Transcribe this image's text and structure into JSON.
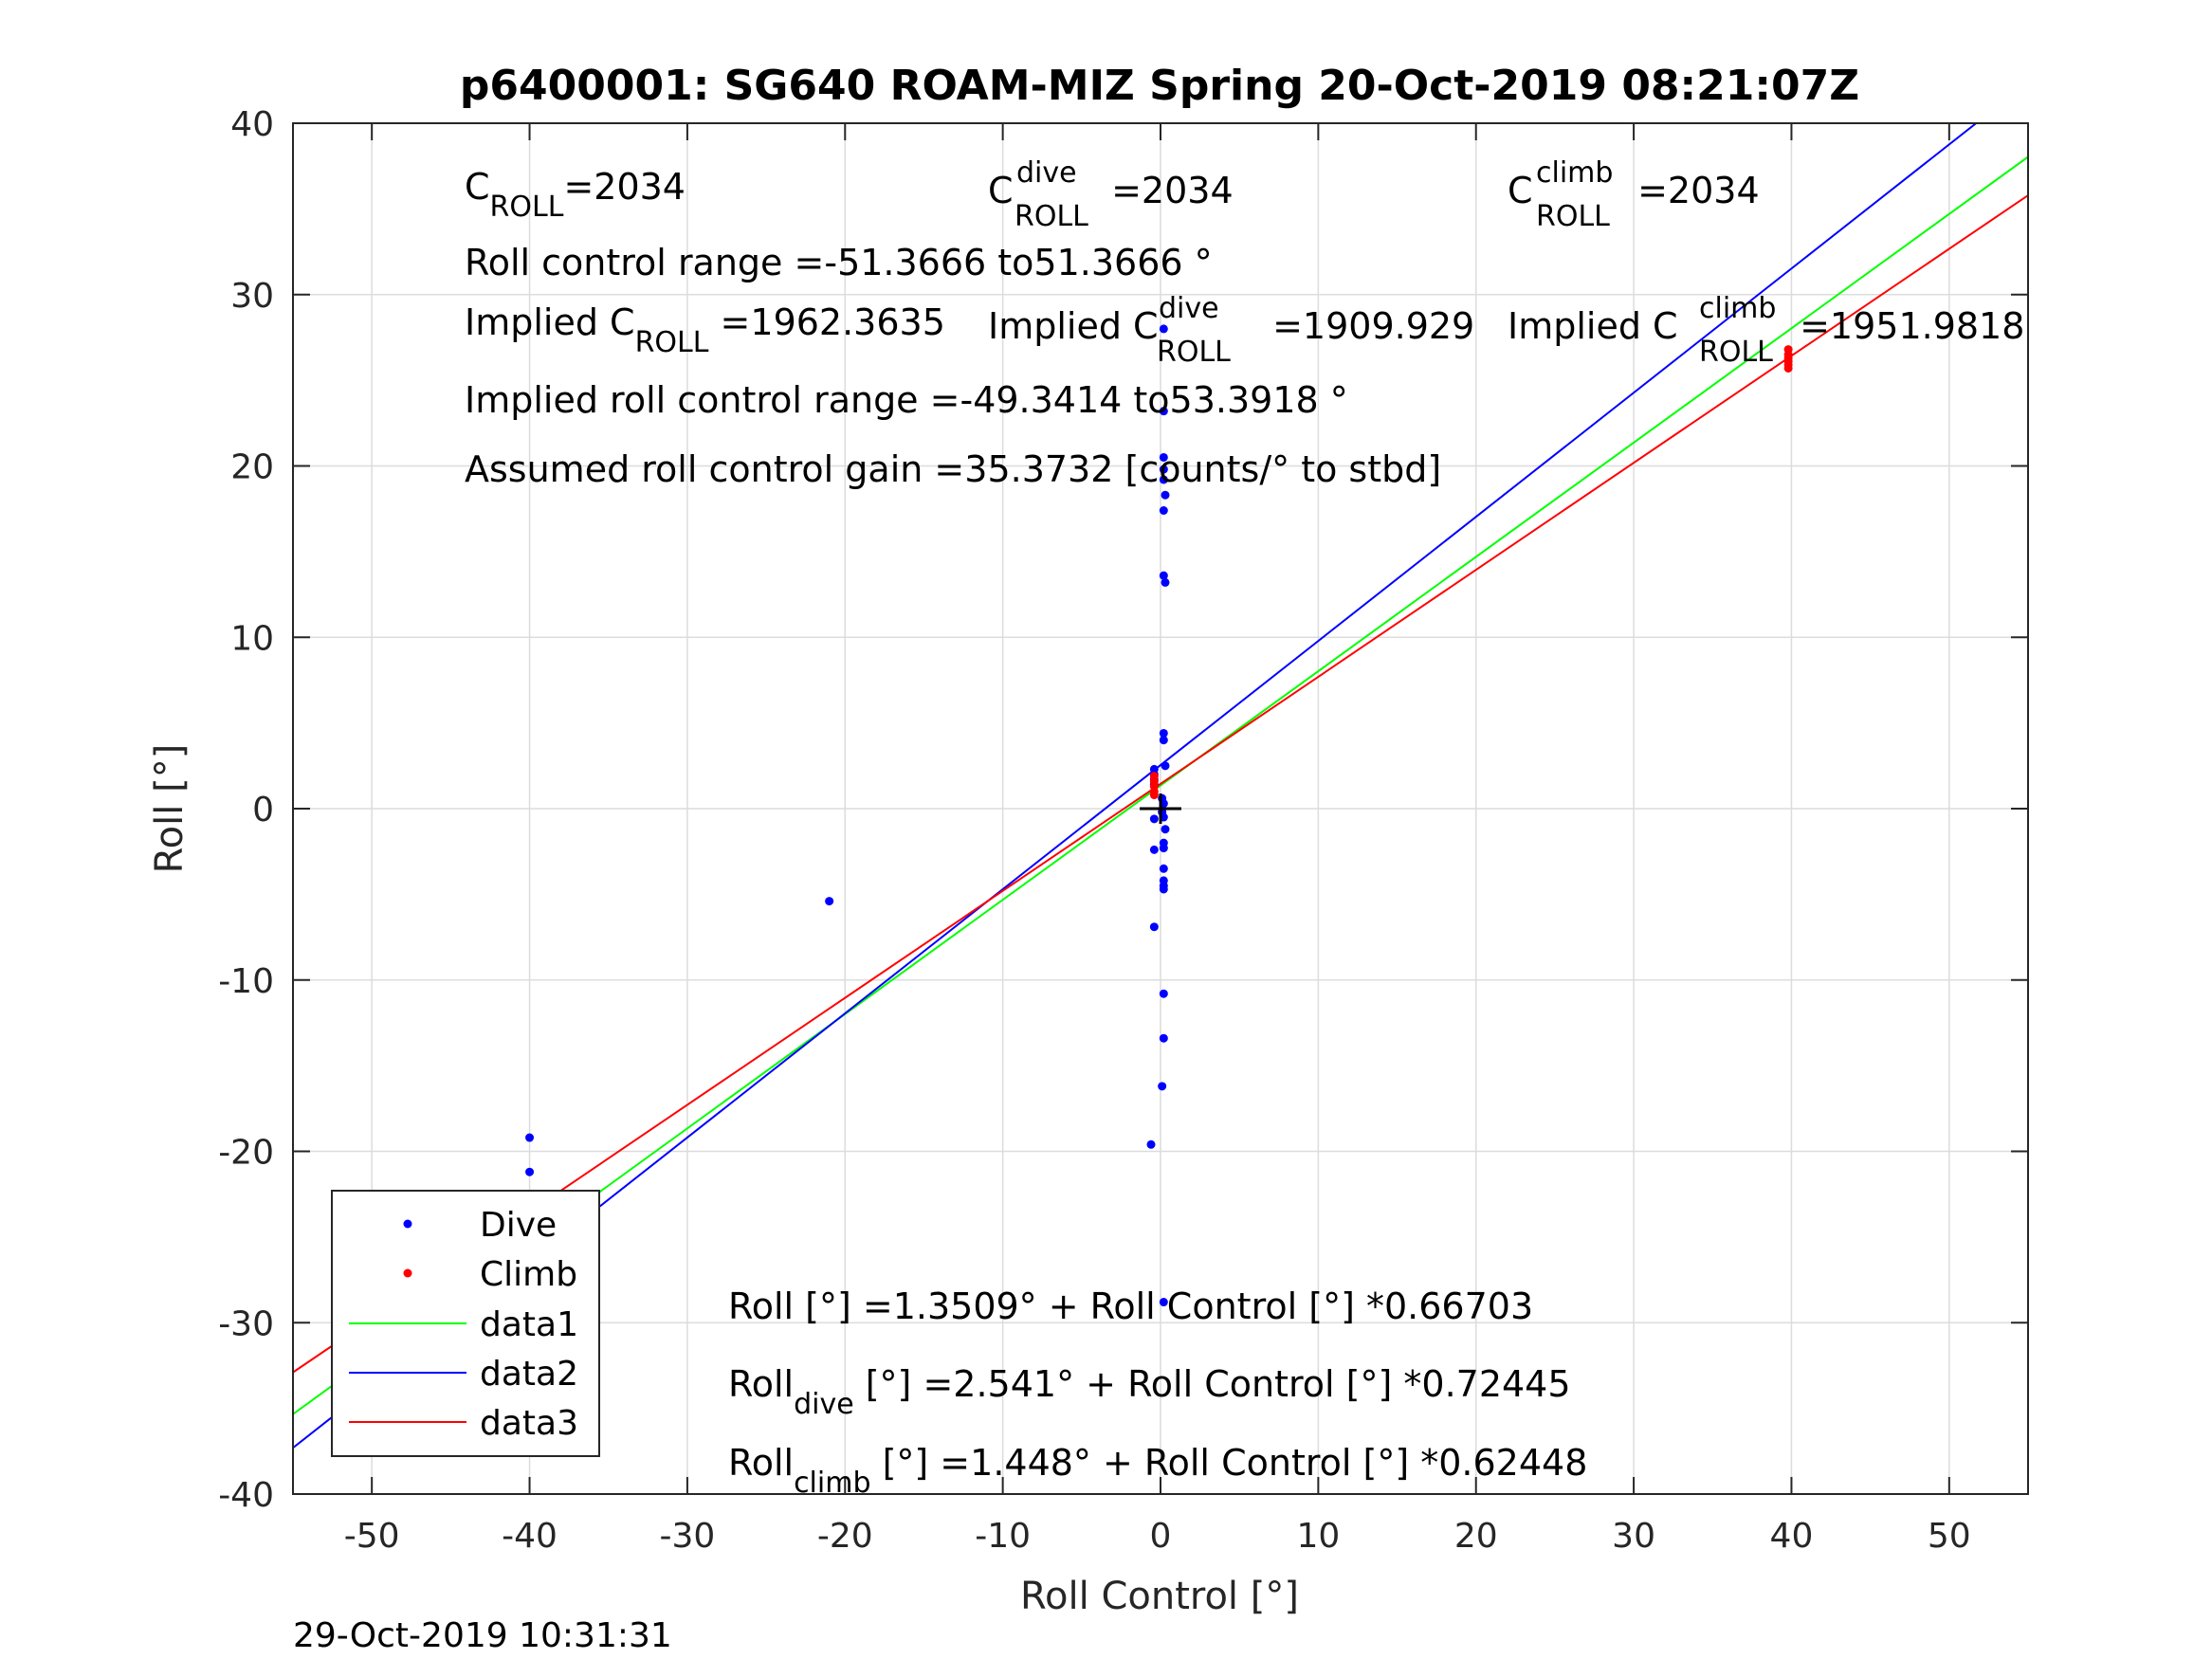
{
  "chart_data": {
    "type": "scatter",
    "title": "p6400001: SG640 ROAM-MIZ Spring 20-Oct-2019 08:21:07Z",
    "xlabel": "Roll Control [°]",
    "ylabel": "Roll [°]",
    "xlim": [
      -55,
      55
    ],
    "ylim": [
      -40,
      40
    ],
    "xticks": [
      -50,
      -40,
      -30,
      -20,
      -10,
      0,
      10,
      20,
      30,
      40,
      50
    ],
    "yticks": [
      -40,
      -30,
      -20,
      -10,
      0,
      10,
      20,
      30,
      40
    ],
    "grid": true,
    "legend_placement": "bottom-left",
    "legend": [
      "Dive",
      "Climb",
      "data1",
      "data2",
      "data3"
    ],
    "series": [
      {
        "name": "Dive",
        "kind": "points",
        "color": "#0000ff",
        "points": [
          [
            -40,
            -19.2
          ],
          [
            -40,
            -21.2
          ],
          [
            -40,
            -25.2
          ],
          [
            -40,
            -25.6
          ],
          [
            -40,
            -25.9
          ],
          [
            -40,
            -26.2
          ],
          [
            -40,
            -26.5
          ],
          [
            -40,
            -26.8
          ],
          [
            -40,
            -27.1
          ],
          [
            -40,
            -27.4
          ],
          [
            -40,
            -27.7
          ],
          [
            -40,
            -28.5
          ],
          [
            -40,
            -29.0
          ],
          [
            -40,
            -29.4
          ],
          [
            -40,
            -33.6
          ],
          [
            -21,
            -5.4
          ],
          [
            0.2,
            28.0
          ],
          [
            0.2,
            23.2
          ],
          [
            0.2,
            20.5
          ],
          [
            0.2,
            19.8
          ],
          [
            0.2,
            19.2
          ],
          [
            0.3,
            18.3
          ],
          [
            0.2,
            17.4
          ],
          [
            0.2,
            13.6
          ],
          [
            0.3,
            13.2
          ],
          [
            0.2,
            4.4
          ],
          [
            0.2,
            4.0
          ],
          [
            0.3,
            2.5
          ],
          [
            -0.4,
            2.3
          ],
          [
            -0.4,
            2.0
          ],
          [
            -0.4,
            1.7
          ],
          [
            -0.4,
            1.4
          ],
          [
            0.1,
            0.6
          ],
          [
            0.2,
            0.3
          ],
          [
            0.1,
            -0.2
          ],
          [
            0.2,
            -0.5
          ],
          [
            -0.4,
            -0.6
          ],
          [
            0.3,
            -1.2
          ],
          [
            0.2,
            -2.0
          ],
          [
            0.2,
            -2.3
          ],
          [
            -0.4,
            -2.4
          ],
          [
            0.2,
            -3.5
          ],
          [
            0.2,
            -4.2
          ],
          [
            0.2,
            -4.5
          ],
          [
            0.2,
            -4.7
          ],
          [
            -0.4,
            -6.9
          ],
          [
            0.2,
            -10.8
          ],
          [
            0.2,
            -13.4
          ],
          [
            0.1,
            -16.2
          ],
          [
            -0.6,
            -19.6
          ],
          [
            0.2,
            -28.8
          ]
        ]
      },
      {
        "name": "Climb",
        "kind": "points",
        "color": "#ff0000",
        "points": [
          [
            -0.4,
            1.9
          ],
          [
            -0.4,
            1.6
          ],
          [
            -0.4,
            1.3
          ],
          [
            -0.4,
            1.0
          ],
          [
            -0.4,
            0.8
          ],
          [
            39.8,
            26.8
          ],
          [
            39.8,
            26.5
          ],
          [
            39.8,
            26.3
          ],
          [
            39.8,
            26.1
          ],
          [
            39.8,
            25.9
          ],
          [
            39.8,
            25.7
          ]
        ]
      },
      {
        "name": "data1",
        "kind": "line",
        "color": "#00ff00",
        "intercept": 1.3509,
        "slope": 0.66703
      },
      {
        "name": "data2",
        "kind": "line",
        "color": "#0000ff",
        "intercept": 2.541,
        "slope": 0.72445
      },
      {
        "name": "data3",
        "kind": "line",
        "color": "#ff0000",
        "intercept": 1.448,
        "slope": 0.62448
      }
    ],
    "marker": {
      "type": "plus",
      "x": 0,
      "y": 0,
      "color": "#000000"
    },
    "annotations": {
      "c_roll": {
        "base": "C",
        "sub": "ROLL",
        "value": "=2034"
      },
      "c_roll_dive": {
        "base": "C",
        "sup": "dive",
        "sub": "ROLL",
        "value": " =2034"
      },
      "c_roll_climb": {
        "base": "C",
        "sup": "climb",
        "sub": "ROLL",
        "value": " =2034"
      },
      "roll_control_range": "Roll control range =-51.3666 to51.3666 °",
      "implied_c_roll": {
        "base": "Implied C",
        "sub": "ROLL",
        "value": " =1962.3635"
      },
      "implied_c_roll_dive": {
        "base": "Implied C",
        "sup": "dive",
        "sub": "ROLL",
        "value": " =1909.929"
      },
      "implied_c_roll_climb": {
        "base": "Implied C",
        "sup": "climb",
        "sub": "ROLL",
        "value": " =1951.9818"
      },
      "implied_roll_control_range": "Implied roll control range =-49.3414 to53.3918 °",
      "assumed_gain": "Assumed roll control gain =35.3732 [counts/° to stbd]",
      "fit_all": "Roll [°] =1.3509° + Roll Control [°] *0.66703",
      "fit_dive": {
        "base": "Roll",
        "sub": "dive",
        "value": " [°] =2.541° + Roll Control [°] *0.72445"
      },
      "fit_climb": {
        "base": "Roll",
        "sub": "climb",
        "value": " [°] =1.448° + Roll Control [°] *0.62448"
      }
    }
  },
  "footer": {
    "timestamp": "29-Oct-2019 10:31:31"
  }
}
